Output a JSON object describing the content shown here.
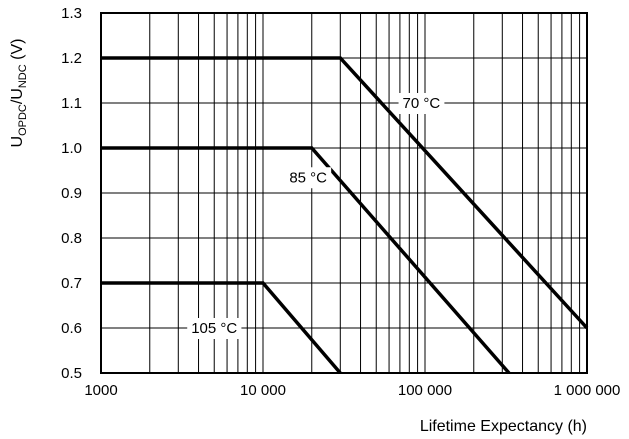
{
  "chart_data": {
    "type": "line",
    "xscale": "log",
    "xlim": [
      1000,
      1000000
    ],
    "ylim": [
      0.5,
      1.3
    ],
    "grid": true,
    "legend": "none",
    "xlabel": "Lifetime Expectancy (h)",
    "ylabel_main": "U",
    "ylabel_sub1": "OPDC",
    "ylabel_mid": "/U",
    "ylabel_sub2": "NDC",
    "ylabel_unit": " (V)",
    "x_ticks": [
      {
        "value": 1000,
        "label": "1000"
      },
      {
        "value": 10000,
        "label": "10 000"
      },
      {
        "value": 100000,
        "label": "100 000"
      },
      {
        "value": 1000000,
        "label": "1 000 000"
      }
    ],
    "y_ticks": [
      {
        "value": 0.5,
        "label": "0.5"
      },
      {
        "value": 0.6,
        "label": "0.6"
      },
      {
        "value": 0.7,
        "label": "0.7"
      },
      {
        "value": 0.8,
        "label": "0.8"
      },
      {
        "value": 0.9,
        "label": "0.9"
      },
      {
        "value": 1.0,
        "label": "1.0"
      },
      {
        "value": 1.1,
        "label": "1.1"
      },
      {
        "value": 1.2,
        "label": "1.2"
      },
      {
        "value": 1.3,
        "label": "1.3"
      }
    ],
    "series": [
      {
        "name": "70 °C",
        "points": [
          [
            1000,
            1.2
          ],
          [
            30000,
            1.2
          ],
          [
            1000000,
            0.6
          ]
        ],
        "label_at": [
          95000,
          1.1
        ]
      },
      {
        "name": "85 °C",
        "points": [
          [
            1000,
            1.0
          ],
          [
            20000,
            1.0
          ],
          [
            330000,
            0.5
          ]
        ],
        "label_at": [
          19000,
          0.935
        ]
      },
      {
        "name": "105 °C",
        "points": [
          [
            1000,
            0.7
          ],
          [
            10000,
            0.7
          ],
          [
            30000,
            0.5
          ]
        ],
        "label_at": [
          5000,
          0.6
        ]
      }
    ]
  }
}
